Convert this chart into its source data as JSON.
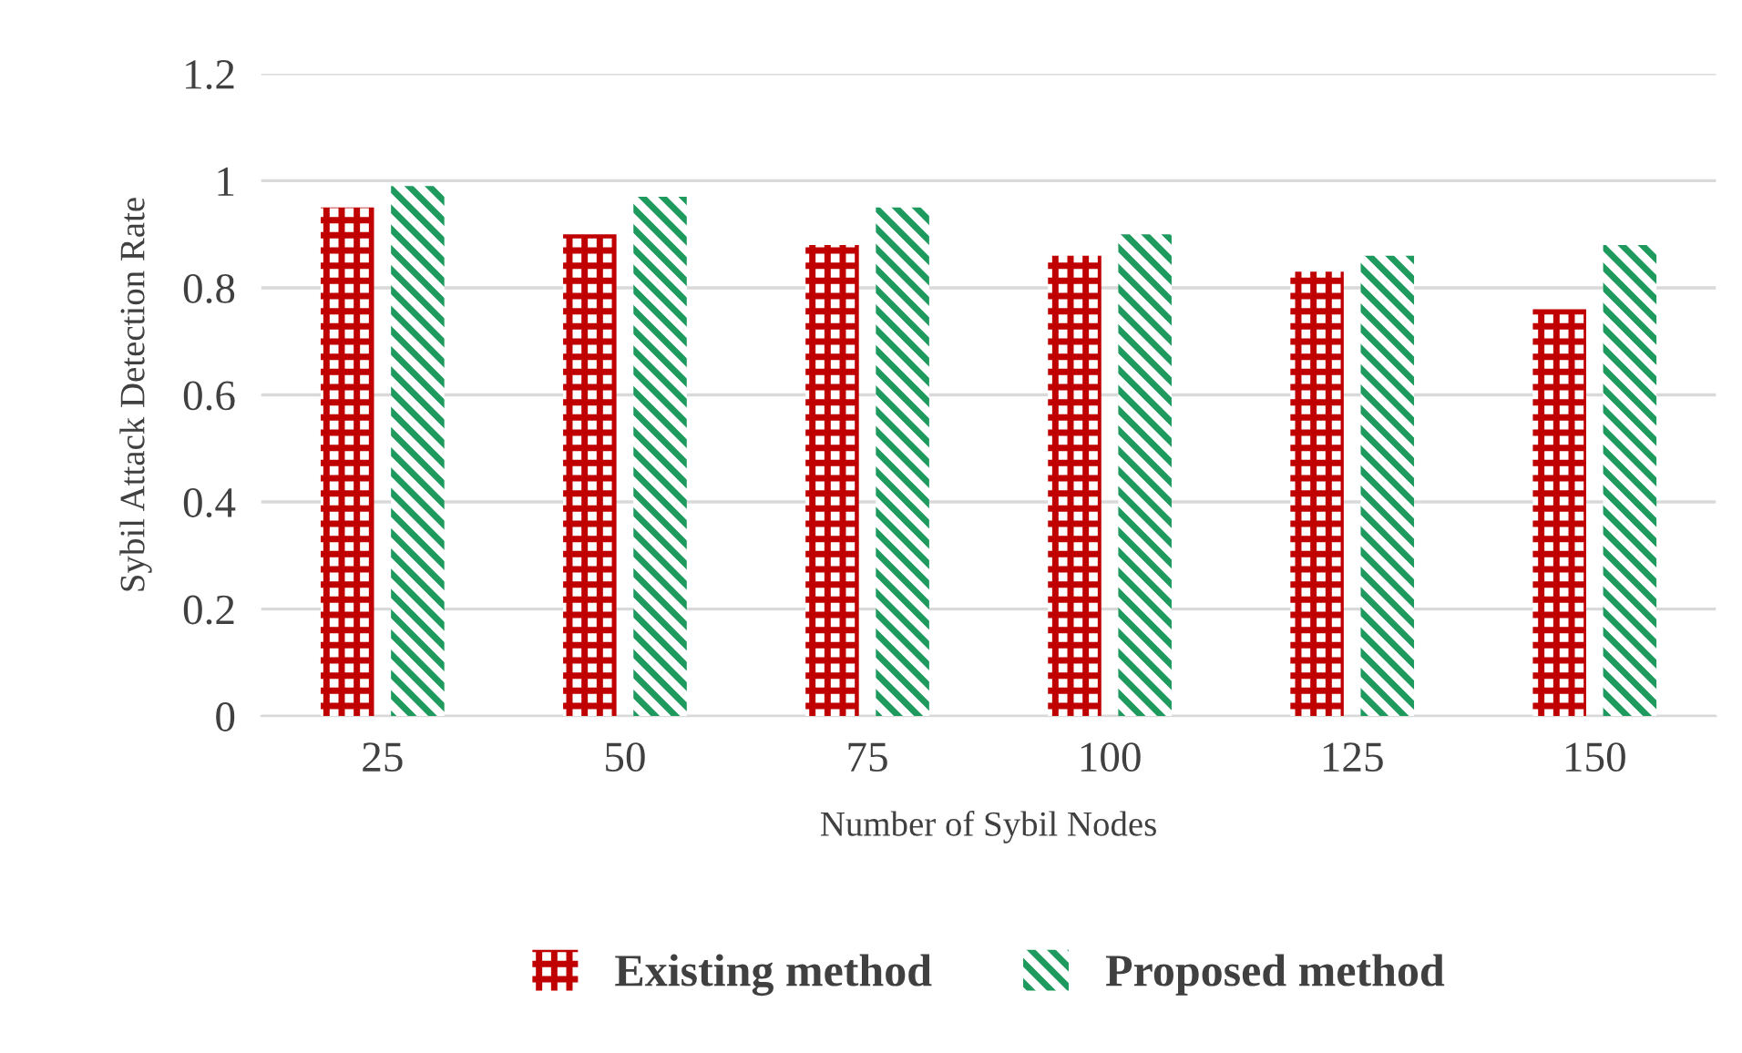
{
  "chart_data": {
    "type": "bar",
    "xlabel": "Number of Sybil Nodes",
    "ylabel": "Sybil Attack Detection Rate",
    "categories": [
      "25",
      "50",
      "75",
      "100",
      "125",
      "150"
    ],
    "series": [
      {
        "name": "Existing method",
        "color": "#c00000",
        "values": [
          0.95,
          0.9,
          0.88,
          0.86,
          0.83,
          0.76
        ]
      },
      {
        "name": "Proposed method",
        "color": "#1f9a5e",
        "values": [
          0.99,
          0.97,
          0.95,
          0.9,
          0.86,
          0.88
        ]
      }
    ],
    "ylim": [
      0,
      1.2
    ],
    "yticks": [
      0,
      0.2,
      0.4,
      0.6,
      0.8,
      1,
      1.2
    ],
    "grid": "y",
    "legend": "bottom"
  }
}
